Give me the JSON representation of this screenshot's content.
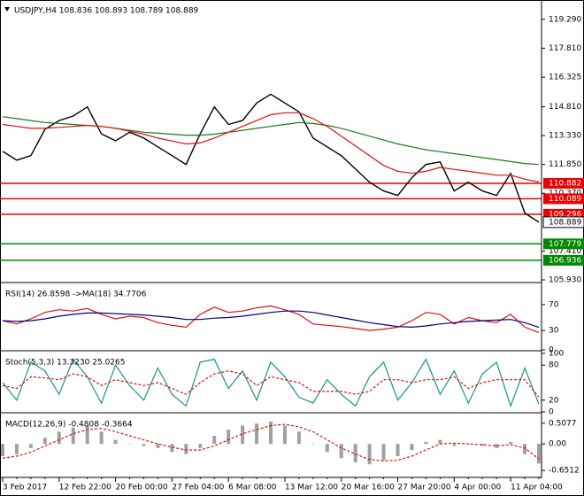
{
  "chart_data": [
    {
      "type": "line",
      "title": "USDJPY,H4  108.836 108.893 108.789 108.889",
      "categories": [
        "3 Feb 2017",
        null,
        null,
        null,
        "12 Feb 22:00",
        null,
        null,
        null,
        "20 Feb 00:00",
        null,
        null,
        null,
        "27 Feb 04:00",
        null,
        null,
        null,
        "6 Mar 08:00",
        null,
        null,
        null,
        "13 Mar 12:00",
        null,
        null,
        null,
        "20 Mar 16:00",
        null,
        null,
        null,
        "27 Mar 20:00",
        null,
        null,
        null,
        "4 Apr 00:00",
        null,
        null,
        null,
        "11 Apr 04:00",
        null,
        null
      ],
      "ylim": [
        105.84,
        120.19
      ],
      "yticks": [
        {
          "value": 119.29,
          "label": "119.290"
        },
        {
          "value": 117.81,
          "label": "117.810"
        },
        116.325,
        {
          "value": 114.81,
          "label": "114.810"
        },
        {
          "value": 113.33,
          "label": "113.330"
        },
        {
          "value": 111.85,
          "label": "111.850"
        },
        {
          "value": 110.37,
          "label": "110.370"
        },
        {
          "value": 107.41,
          "label": "107.410"
        },
        {
          "value": 105.93,
          "label": "105.930"
        }
      ],
      "series": [
        {
          "color": "#000000",
          "values": [
            112.52,
            112.07,
            112.3,
            113.65,
            114.1,
            114.33,
            114.8,
            113.42,
            113.06,
            113.5,
            113.2,
            112.75,
            112.3,
            111.85,
            113.42,
            114.8,
            113.9,
            114.1,
            115.0,
            115.45,
            115.0,
            114.55,
            113.2,
            112.75,
            112.3,
            111.62,
            110.94,
            110.49,
            110.26,
            111.17,
            111.85,
            111.98,
            110.49,
            110.94,
            110.49,
            110.26,
            111.39,
            109.36,
            108.889
          ]
        },
        {
          "color": "#1a7a1a",
          "values": [
            114.3,
            114.2,
            114.1,
            114.0,
            113.95,
            113.9,
            113.85,
            113.8,
            113.7,
            113.6,
            113.5,
            113.45,
            113.4,
            113.35,
            113.35,
            113.4,
            113.5,
            113.6,
            113.7,
            113.8,
            113.9,
            114.0,
            113.95,
            113.85,
            113.7,
            113.5,
            113.3,
            113.1,
            112.9,
            112.75,
            112.6,
            112.5,
            112.4,
            112.3,
            112.2,
            112.1,
            112.0,
            111.9,
            111.85
          ]
        },
        {
          "color": "#dd1111",
          "values": [
            113.9,
            113.8,
            113.7,
            113.7,
            113.75,
            113.8,
            113.85,
            113.8,
            113.7,
            113.55,
            113.4,
            113.2,
            113.05,
            112.9,
            112.95,
            113.2,
            113.5,
            113.8,
            114.1,
            114.4,
            114.5,
            114.5,
            114.2,
            113.8,
            113.3,
            112.8,
            112.3,
            111.8,
            111.5,
            111.4,
            111.5,
            111.7,
            111.6,
            111.5,
            111.4,
            111.3,
            111.3,
            111.1,
            110.95
          ]
        }
      ],
      "resistance": [
        110.882,
        110.089,
        109.296
      ],
      "resistance_color": "#ee0000",
      "support": [
        107.779,
        106.936
      ],
      "support_color": "#008800"
    },
    {
      "type": "line",
      "title": "RSI(14) 26.8598 ->MA(18) 34.7706",
      "ylim": [
        0,
        100
      ],
      "yticks": [
        70,
        30,
        0
      ],
      "series": [
        {
          "color": "#dd1111",
          "values": [
            45,
            40,
            48,
            58,
            62,
            60,
            64,
            55,
            48,
            52,
            50,
            42,
            38,
            35,
            55,
            66,
            58,
            60,
            65,
            68,
            62,
            55,
            40,
            38,
            36,
            33,
            30,
            32,
            35,
            45,
            58,
            55,
            40,
            50,
            45,
            42,
            55,
            35,
            26.8598
          ]
        },
        {
          "color": "#000080",
          "values": [
            45,
            44,
            45,
            48,
            52,
            55,
            57,
            57,
            56,
            55,
            54,
            52,
            50,
            47,
            47,
            49,
            50,
            52,
            55,
            58,
            60,
            60,
            58,
            54,
            50,
            46,
            42,
            39,
            36,
            35,
            37,
            40,
            42,
            44,
            45,
            46,
            47,
            42,
            34.7706
          ]
        }
      ]
    },
    {
      "type": "line",
      "title": "Stoch(5,3,3) 13.3230 25.0265",
      "ylim": [
        0,
        100
      ],
      "yticks": [
        100,
        80,
        20,
        0
      ],
      "series": [
        {
          "color": "#1a9090",
          "values": [
            50,
            20,
            85,
            70,
            30,
            90,
            60,
            15,
            80,
            45,
            20,
            75,
            30,
            10,
            85,
            90,
            40,
            70,
            20,
            85,
            60,
            25,
            15,
            55,
            30,
            10,
            60,
            85,
            20,
            50,
            90,
            30,
            70,
            15,
            65,
            85,
            10,
            75,
            13.323
          ]
        },
        {
          "color": "#dd1111",
          "dashed": true,
          "values": [
            45,
            40,
            60,
            58,
            55,
            65,
            60,
            45,
            55,
            50,
            45,
            50,
            40,
            30,
            50,
            65,
            70,
            65,
            45,
            60,
            55,
            50,
            35,
            35,
            35,
            30,
            35,
            55,
            55,
            50,
            55,
            55,
            60,
            40,
            50,
            55,
            55,
            55,
            25.0265
          ]
        }
      ]
    },
    {
      "type": "line",
      "title": "MACD(12,26,9) -0.4808 -0.3664",
      "ylim": [
        -0.8,
        0.7
      ],
      "yticks": [
        0.5077,
        {
          "value": 0,
          "label": "0.00"
        },
        -0.6512
      ],
      "series": [
        {
          "color": "#a0a0a0",
          "histogram": true,
          "values": [
            -0.3,
            -0.25,
            -0.1,
            0.15,
            0.3,
            0.4,
            0.45,
            0.3,
            0.1,
            0.0,
            -0.05,
            -0.1,
            -0.2,
            -0.25,
            -0.1,
            0.2,
            0.35,
            0.45,
            0.5,
            0.55,
            0.45,
            0.3,
            0.0,
            -0.2,
            -0.35,
            -0.45,
            -0.5,
            -0.4,
            -0.3,
            -0.15,
            0.05,
            0.1,
            -0.05,
            0.0,
            -0.05,
            -0.1,
            0.05,
            -0.25,
            -0.4808
          ]
        },
        {
          "color": "#dd1111",
          "dashed": true,
          "values": [
            -0.35,
            -0.3,
            -0.2,
            -0.05,
            0.1,
            0.25,
            0.35,
            0.38,
            0.3,
            0.2,
            0.1,
            0.0,
            -0.08,
            -0.15,
            -0.15,
            -0.05,
            0.1,
            0.25,
            0.35,
            0.45,
            0.48,
            0.42,
            0.3,
            0.1,
            -0.1,
            -0.25,
            -0.38,
            -0.42,
            -0.4,
            -0.3,
            -0.15,
            0.0,
            0.02,
            0.0,
            -0.02,
            -0.05,
            -0.02,
            -0.1,
            -0.3664
          ]
        }
      ]
    }
  ]
}
